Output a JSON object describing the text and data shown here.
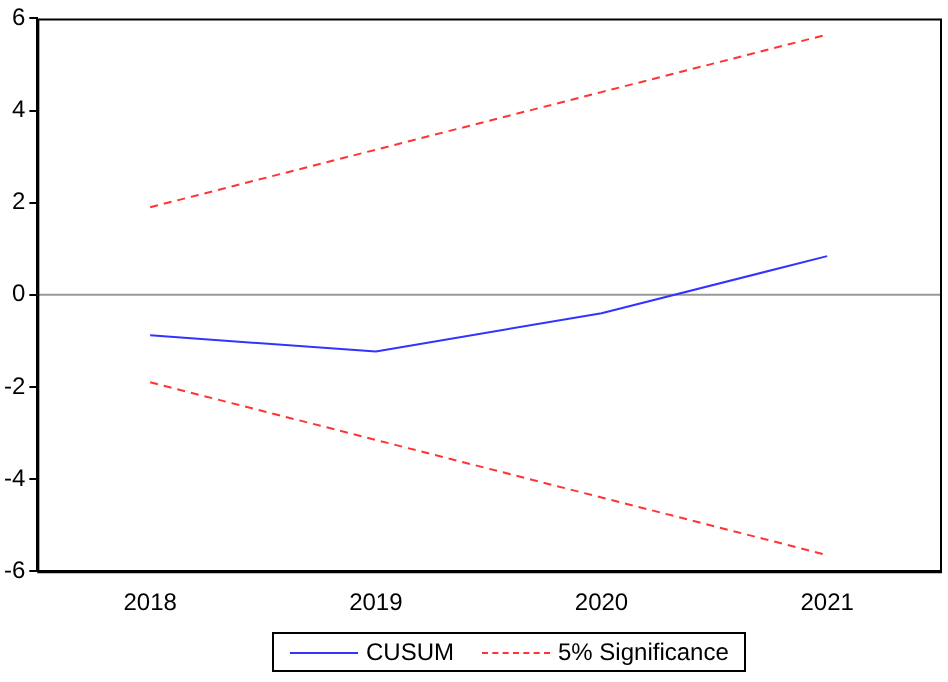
{
  "chart_data": {
    "type": "line",
    "categories": [
      "2018",
      "2019",
      "2020",
      "2021"
    ],
    "series": [
      {
        "name": "CUSUM",
        "color": "#3333ff",
        "values": [
          -0.88,
          -1.23,
          -0.4,
          0.84
        ],
        "line_style": "solid"
      },
      {
        "name": "5% Significance",
        "color": "#ff3333",
        "values": [
          1.9,
          3.15,
          4.4,
          5.65
        ],
        "line_style": "dashed"
      },
      {
        "color": "#ff3333",
        "values": [
          -1.9,
          -3.15,
          -4.4,
          -5.65
        ],
        "line_style": "dashed"
      }
    ],
    "ylim": [
      -6,
      6
    ],
    "yticks": [
      -6,
      -4,
      -2,
      0,
      2,
      4,
      6
    ],
    "grid": false,
    "legend": "bottom",
    "marker": "none",
    "ref_lines": [
      {
        "axis": "y",
        "value": 0,
        "color": "#999999"
      }
    ]
  }
}
